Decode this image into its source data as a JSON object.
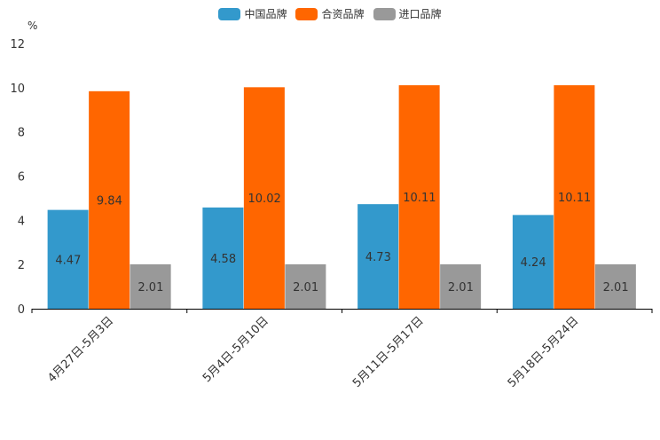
{
  "chart_data": {
    "type": "bar",
    "unit_label": "%",
    "categories": [
      "4月27日-5月3日",
      "5月4日-5月10日",
      "5月11日-5月17日",
      "5月18日-5月24日"
    ],
    "series": [
      {
        "name": "中国品牌",
        "color": "#3399cc",
        "values": [
          4.47,
          4.58,
          4.73,
          4.24
        ]
      },
      {
        "name": "合资品牌",
        "color": "#ff6600",
        "values": [
          9.84,
          10.02,
          10.11,
          10.11
        ]
      },
      {
        "name": "进口品牌",
        "color": "#999999",
        "values": [
          2.01,
          2.01,
          2.01,
          2.01
        ]
      }
    ],
    "ylim": [
      0,
      12
    ],
    "yticks": [
      0,
      2,
      4,
      6,
      8,
      10,
      12
    ],
    "legend_position": "top-center"
  }
}
